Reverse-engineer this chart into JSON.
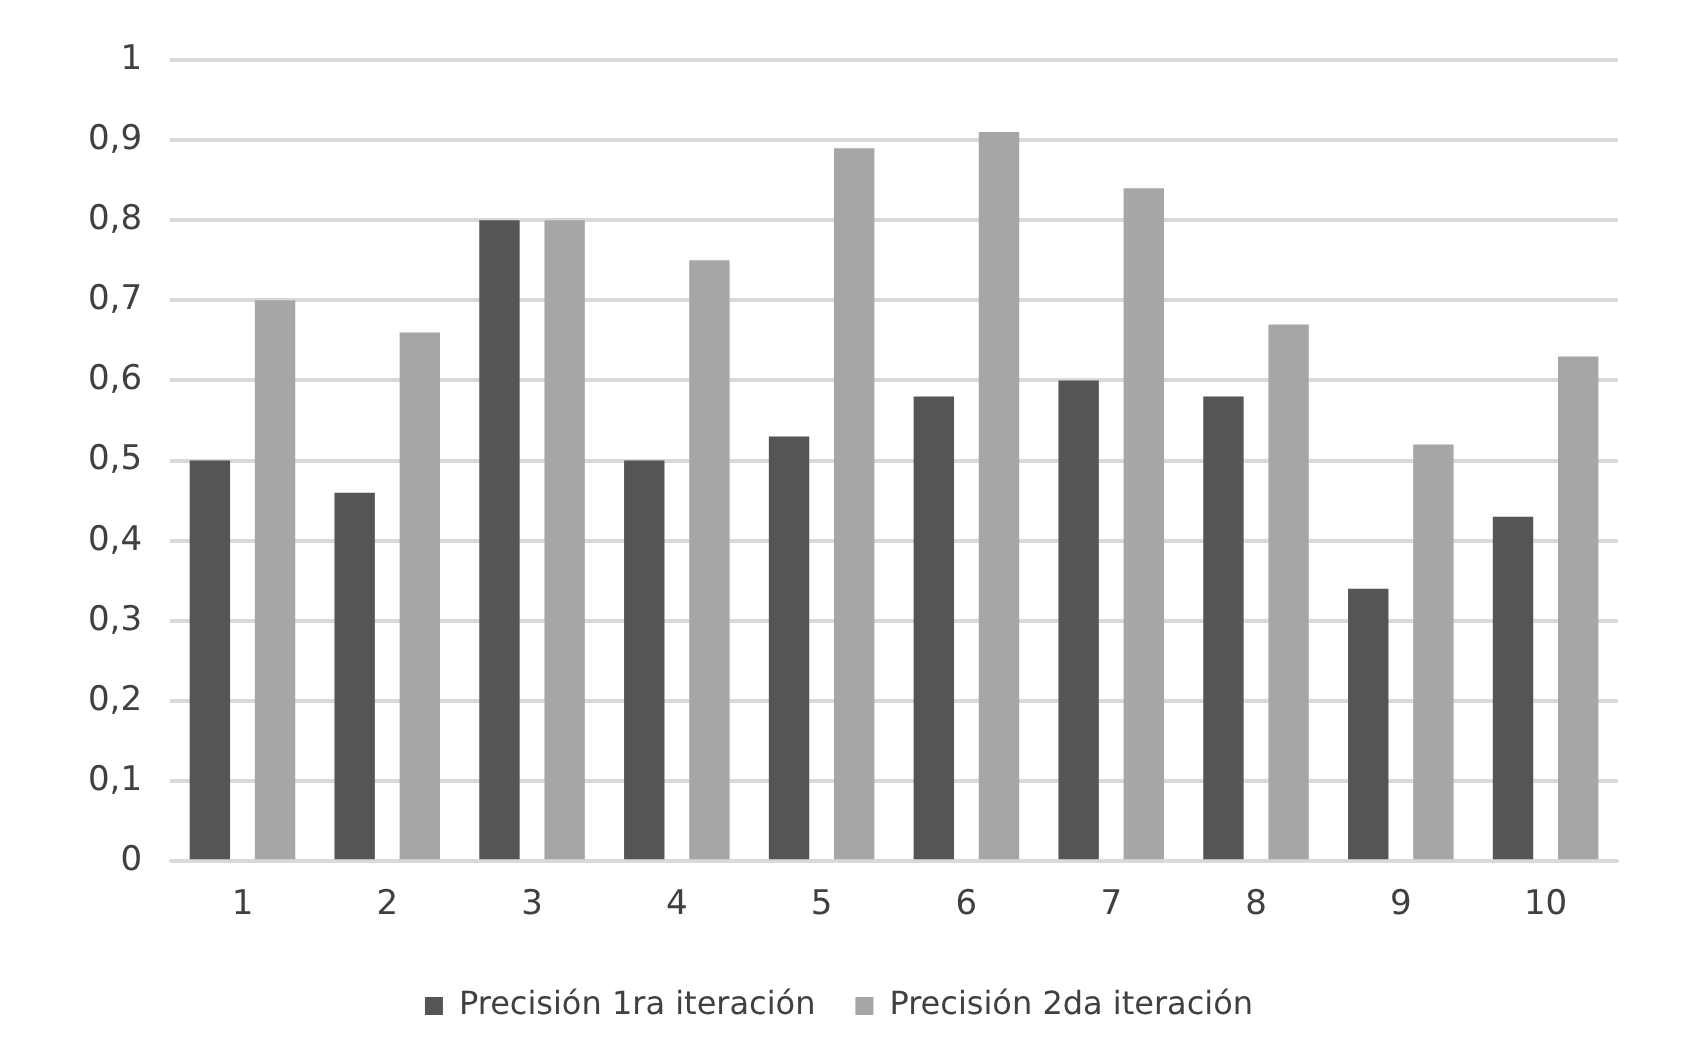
{
  "chart_data": {
    "type": "bar",
    "categories": [
      "1",
      "2",
      "3",
      "4",
      "5",
      "6",
      "7",
      "8",
      "9",
      "10"
    ],
    "series": [
      {
        "name": "Precisión 1ra iteración",
        "color": "#555555",
        "values": [
          0.5,
          0.46,
          0.8,
          0.5,
          0.53,
          0.58,
          0.6,
          0.58,
          0.34,
          0.43
        ]
      },
      {
        "name": "Precisión 2da iteración",
        "color": "#a6a6a6",
        "values": [
          0.7,
          0.66,
          0.8,
          0.75,
          0.89,
          0.91,
          0.84,
          0.67,
          0.52,
          0.63
        ]
      }
    ],
    "ylim": [
      0,
      1
    ],
    "yticks": [
      {
        "value": 0,
        "label": "0"
      },
      {
        "value": 0.1,
        "label": "0,1"
      },
      {
        "value": 0.2,
        "label": "0,2"
      },
      {
        "value": 0.3,
        "label": "0,3"
      },
      {
        "value": 0.4,
        "label": "0,4"
      },
      {
        "value": 0.5,
        "label": "0,5"
      },
      {
        "value": 0.6,
        "label": "0,6"
      },
      {
        "value": 0.7,
        "label": "0,7"
      },
      {
        "value": 0.8,
        "label": "0,8"
      },
      {
        "value": 0.9,
        "label": "0,9"
      },
      {
        "value": 1,
        "label": "1"
      }
    ],
    "grid": "y",
    "legend": "bottom"
  }
}
